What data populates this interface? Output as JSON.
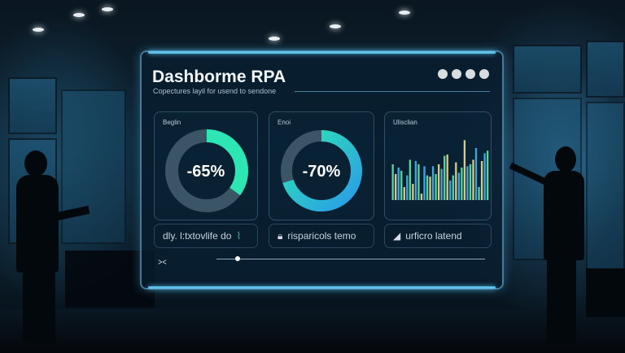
{
  "dashboard": {
    "title": "Dashborme RPA",
    "subtitle": "Copectures layil for usend to sendone",
    "cards": [
      {
        "label": "Beglin",
        "value": "-65%",
        "progress": 0.35,
        "ring_color": "#2ee6b4"
      },
      {
        "label": "Enoi",
        "value": "-70%",
        "progress": 0.7,
        "ring_color": "#2ee6b4"
      },
      {
        "label": "Ulisclian",
        "bar_levels": [
          0.55,
          0.4,
          0.5,
          0.45,
          0.2,
          0.38,
          0.62,
          0.25,
          0.6,
          0.55,
          0.1,
          0.52,
          0.38,
          0.36,
          0.52,
          0.4,
          0.55,
          0.48,
          0.68,
          0.7,
          0.3,
          0.38,
          0.58,
          0.42,
          0.5,
          0.92,
          0.52,
          0.55,
          0.62,
          0.8,
          0.2,
          0.6,
          0.72,
          0.76
        ],
        "bar_colors": [
          "#58d39a",
          "#d7c987",
          "#3fa7e0"
        ]
      }
    ],
    "bottom": [
      {
        "icon": "pulse-icon",
        "text": "dly. l:txtovlife do"
      },
      {
        "icon": "lock-icon",
        "text": "risparicols temo"
      },
      {
        "icon": "chart-icon",
        "text": "urficro latend"
      }
    ],
    "slider_value": 0.08,
    "accent": "#5fc0ea"
  }
}
